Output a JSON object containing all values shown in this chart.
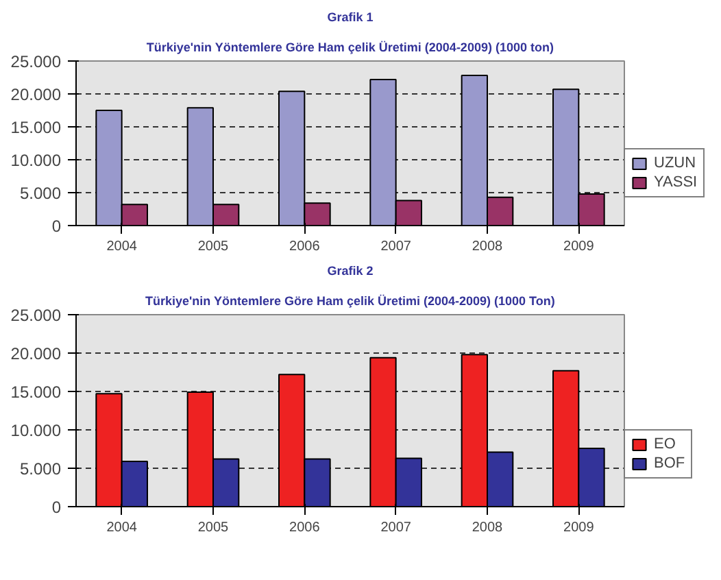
{
  "chart_data": [
    {
      "type": "bar",
      "title": "Grafik 1",
      "subtitle": "Türkiye'nin Yöntemlere Göre Ham çelik Üretimi (2004-2009) (1000 ton)",
      "categories": [
        "2004",
        "2005",
        "2006",
        "2007",
        "2008",
        "2009"
      ],
      "series": [
        {
          "name": "UZUN",
          "color": "#9999cc",
          "values": [
            17500,
            17900,
            20400,
            22200,
            22800,
            20700
          ]
        },
        {
          "name": "YASSI",
          "color": "#993366",
          "values": [
            3200,
            3200,
            3400,
            3800,
            4300,
            4800
          ]
        }
      ],
      "ylim": [
        0,
        25000
      ],
      "yticks": [
        {
          "value": 0,
          "label": "0"
        },
        {
          "value": 5000,
          "label": "5.000"
        },
        {
          "value": 10000,
          "label": "10.000"
        },
        {
          "value": 15000,
          "label": "15.000"
        },
        {
          "value": 20000,
          "label": "20.000"
        },
        {
          "value": 25000,
          "label": "25.000"
        }
      ],
      "grid": "y",
      "legend": "right"
    },
    {
      "type": "bar",
      "title": "Grafik 2",
      "subtitle": "Türkiye'nin Yöntemlere Göre Ham çelik Üretimi (2004-2009) (1000 Ton)",
      "categories": [
        "2004",
        "2005",
        "2006",
        "2007",
        "2008",
        "2009"
      ],
      "series": [
        {
          "name": "EO",
          "color": "#ee2222",
          "values": [
            14700,
            14900,
            17200,
            19400,
            19800,
            17700
          ]
        },
        {
          "name": "BOF",
          "color": "#333399",
          "values": [
            5900,
            6200,
            6200,
            6300,
            7100,
            7600
          ]
        }
      ],
      "ylim": [
        0,
        25000
      ],
      "yticks": [
        {
          "value": 0,
          "label": "0"
        },
        {
          "value": 5000,
          "label": "5.000"
        },
        {
          "value": 10000,
          "label": "10.000"
        },
        {
          "value": 15000,
          "label": "15.000"
        },
        {
          "value": 20000,
          "label": "20.000"
        },
        {
          "value": 25000,
          "label": "25.000"
        }
      ],
      "grid": "y",
      "legend": "right"
    }
  ]
}
